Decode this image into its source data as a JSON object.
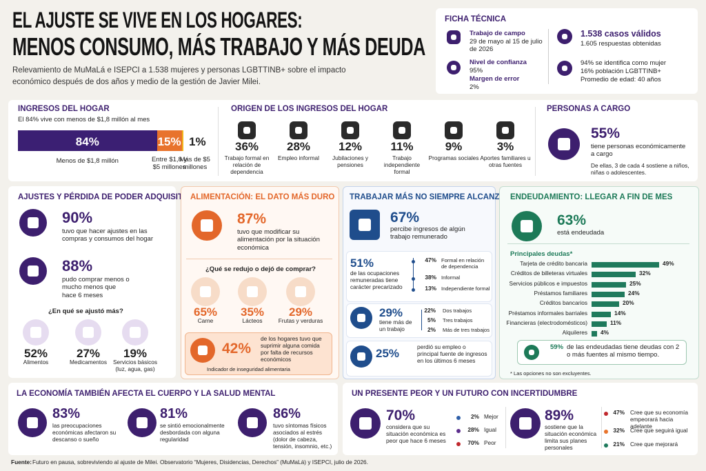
{
  "header": {
    "title_line1": "EL AJUSTE SE VIVE EN LOS HOGARES:",
    "title_line2": "MENOS CONSUMO, MÁS TRABAJO Y MÁS DEUDA",
    "subtitle": "Relevamiento de MuMaLá e ISEPCI a 1.538 mujeres y personas LGBTTINB+ sobre el impacto económico después de dos años y medio de la gestión de Javier Milei."
  },
  "ficha": {
    "title": "FICHA TÉCNICA",
    "campo_label": "Trabajo de campo",
    "campo_value": "29 de mayo al 15 de julio de 2026",
    "confianza_label": "Nivel de confianza",
    "confianza_value": "95%",
    "margen_label": "Margen de error",
    "margen_value": "2%",
    "casos": "1.538 casos válidos",
    "respuestas": "1.605 respuestas obtenidas",
    "mujer": "94% se identifica como mujer",
    "lgbt": "16% población LGBTTINB+",
    "edad": "Promedio de edad: 40 años"
  },
  "ingresos": {
    "title": "INGRESOS DEL HOGAR",
    "subtitle": "El 84% vive con menos de $1,8 millón al mes",
    "categories": [
      "Menos de $1,8 millón",
      "Entre $1,8 y $5 millones",
      "Más de $5 millones"
    ],
    "values": [
      84,
      15,
      1
    ],
    "value_labels": [
      "84%",
      "15%",
      "1%"
    ],
    "colors": [
      "#3b1f73",
      "#e8732c",
      "#f2b619"
    ]
  },
  "origen": {
    "title": "ORIGEN DE LOS INGRESOS DEL HOGAR",
    "items": [
      {
        "value": "36%",
        "label": "Trabajo formal en relación de dependencia"
      },
      {
        "value": "28%",
        "label": "Empleo informal"
      },
      {
        "value": "12%",
        "label": "Jubilaciones y pensiones"
      },
      {
        "value": "11%",
        "label": "Trabajo independiente formal"
      },
      {
        "value": "9%",
        "label": "Programas sociales"
      },
      {
        "value": "3%",
        "label": "Aportes familiares u otras fuentes"
      }
    ]
  },
  "personas": {
    "title": "PERSONAS A CARGO",
    "value": "55%",
    "text": "tiene personas económicamente a cargo",
    "note": "De ellas, 3 de cada 4 sostiene a niños, niñas o adolescentes."
  },
  "ajustes": {
    "title": "AJUSTES Y PÉRDIDA DE PODER ADQUISITIVO",
    "stats": [
      {
        "value": "90%",
        "text": "tuvo que hacer ajustes en las compras y consumos del hogar"
      },
      {
        "value": "88%",
        "text": "pudo comprar menos o mucho menos que hace 6 meses"
      }
    ],
    "question": "¿En qué se ajustó más?",
    "items": [
      {
        "value": "52%",
        "label": "Alimentos"
      },
      {
        "value": "27%",
        "label": "Medicamentos"
      },
      {
        "value": "19%",
        "label": "Servicios básicos (luz, agua, gas)"
      }
    ]
  },
  "alimentacion": {
    "title": "ALIMENTACIÓN: EL DATO MÁS DURO",
    "stat": {
      "value": "87%",
      "text": "tuvo que modificar su alimentación por la situación económica"
    },
    "question": "¿Qué se redujo o dejó de comprar?",
    "items": [
      {
        "value": "65%",
        "label": "Carne"
      },
      {
        "value": "35%",
        "label": "Lácteos"
      },
      {
        "value": "29%",
        "label": "Frutas y verduras"
      }
    ],
    "inseguridad": {
      "value": "42%",
      "text": "de los hogares tuvo que suprimir alguna comida por falta de recursos económicos",
      "caption": "Indicador de inseguridad alimentaria"
    }
  },
  "trabajo": {
    "title": "TRABAJAR MÁS NO SIEMPRE ALCANZA",
    "ingresos": {
      "value": "67%",
      "text": "percibe ingresos de algún trabajo remunerado"
    },
    "precarizado": {
      "value": "51%",
      "text": "de las ocupaciones remuneradas tiene carácter precarizado",
      "breakdown": [
        {
          "value": "47%",
          "label": "Formal en relación de dependencia"
        },
        {
          "value": "38%",
          "label": "Informal"
        },
        {
          "value": "13%",
          "label": "Independiente formal"
        }
      ]
    },
    "multiempleo": {
      "value": "29%",
      "text": "tiene más de un trabajo",
      "breakdown": [
        {
          "value": "22%",
          "label": "Dos trabajos"
        },
        {
          "value": "5%",
          "label": "Tres trabajos"
        },
        {
          "value": "2%",
          "label": "Más de tres trabajos"
        }
      ]
    },
    "perdida": {
      "value": "25%",
      "text": "perdió su empleo o principal fuente de ingresos en los últimos 6 meses"
    }
  },
  "deuda": {
    "title": "ENDEUDAMIENTO: LLEGAR A FIN DE MES",
    "value": "63%",
    "text": "está endeudada",
    "chart_title": "Principales deudas*",
    "categories": [
      "Tarjeta de crédito bancaria",
      "Créditos de billeteras virtuales",
      "Servicios públicos e impuestos",
      "Préstamos familiares",
      "Créditos bancarios",
      "Préstamos informales barriales",
      "Financieras (electrodomésticos)",
      "Alquileres"
    ],
    "values": [
      49,
      32,
      25,
      24,
      20,
      14,
      11,
      4
    ],
    "value_labels": [
      "49%",
      "32%",
      "25%",
      "24%",
      "20%",
      "14%",
      "11%",
      "4%"
    ],
    "color": "#1f7a5c",
    "note_value": "59%",
    "note_text": "de las endeudadas tiene deudas con 2 o más fuentes al mismo tiempo.",
    "footnote": "* Las opciones no son excluyentes."
  },
  "salud": {
    "title": "LA ECONOMÍA TAMBIÉN AFECTA EL CUERPO Y LA SALUD MENTAL",
    "items": [
      {
        "value": "83%",
        "text": "las preocupaciones económicas afectaron su descanso o sueño"
      },
      {
        "value": "81%",
        "text": "se sintió emocionalmente desbordada con alguna regularidad"
      },
      {
        "value": "86%",
        "text": "tuvo síntomas físicos asociados al estrés (dolor de cabeza, tensión, insomnio, etc.)"
      }
    ]
  },
  "futuro": {
    "title": "UN PRESENTE PEOR Y UN FUTURO CON INCERTIDUMBRE",
    "actual": {
      "value": "70%",
      "text": "considera que su situación económica es peor que hace 6 meses",
      "breakdown": [
        {
          "value": "2%",
          "label": "Mejor",
          "color": "#2f5fa8"
        },
        {
          "value": "28%",
          "label": "Igual",
          "color": "#5b2d8c"
        },
        {
          "value": "70%",
          "label": "Peor",
          "color": "#c0282d"
        }
      ]
    },
    "planes": {
      "value": "89%",
      "text": "sostiene que la situación económica limita sus planes personales",
      "breakdown": [
        {
          "value": "47%",
          "label": "Cree que su economía empeorará hacia adelante",
          "color": "#c0282d"
        },
        {
          "value": "32%",
          "label": "Cree que seguirá igual",
          "color": "#e8732c"
        },
        {
          "value": "21%",
          "label": "Cree que mejorará",
          "color": "#1f7a5c"
        }
      ]
    }
  },
  "footer": {
    "label": "Fuente:",
    "text": "Futuro en pausa, sobreviviendo al ajuste de Milei. Observatorio “Mujeres, Disidencias, Derechos” (MuMaLá) y ISEPCI, julio de 2026."
  }
}
